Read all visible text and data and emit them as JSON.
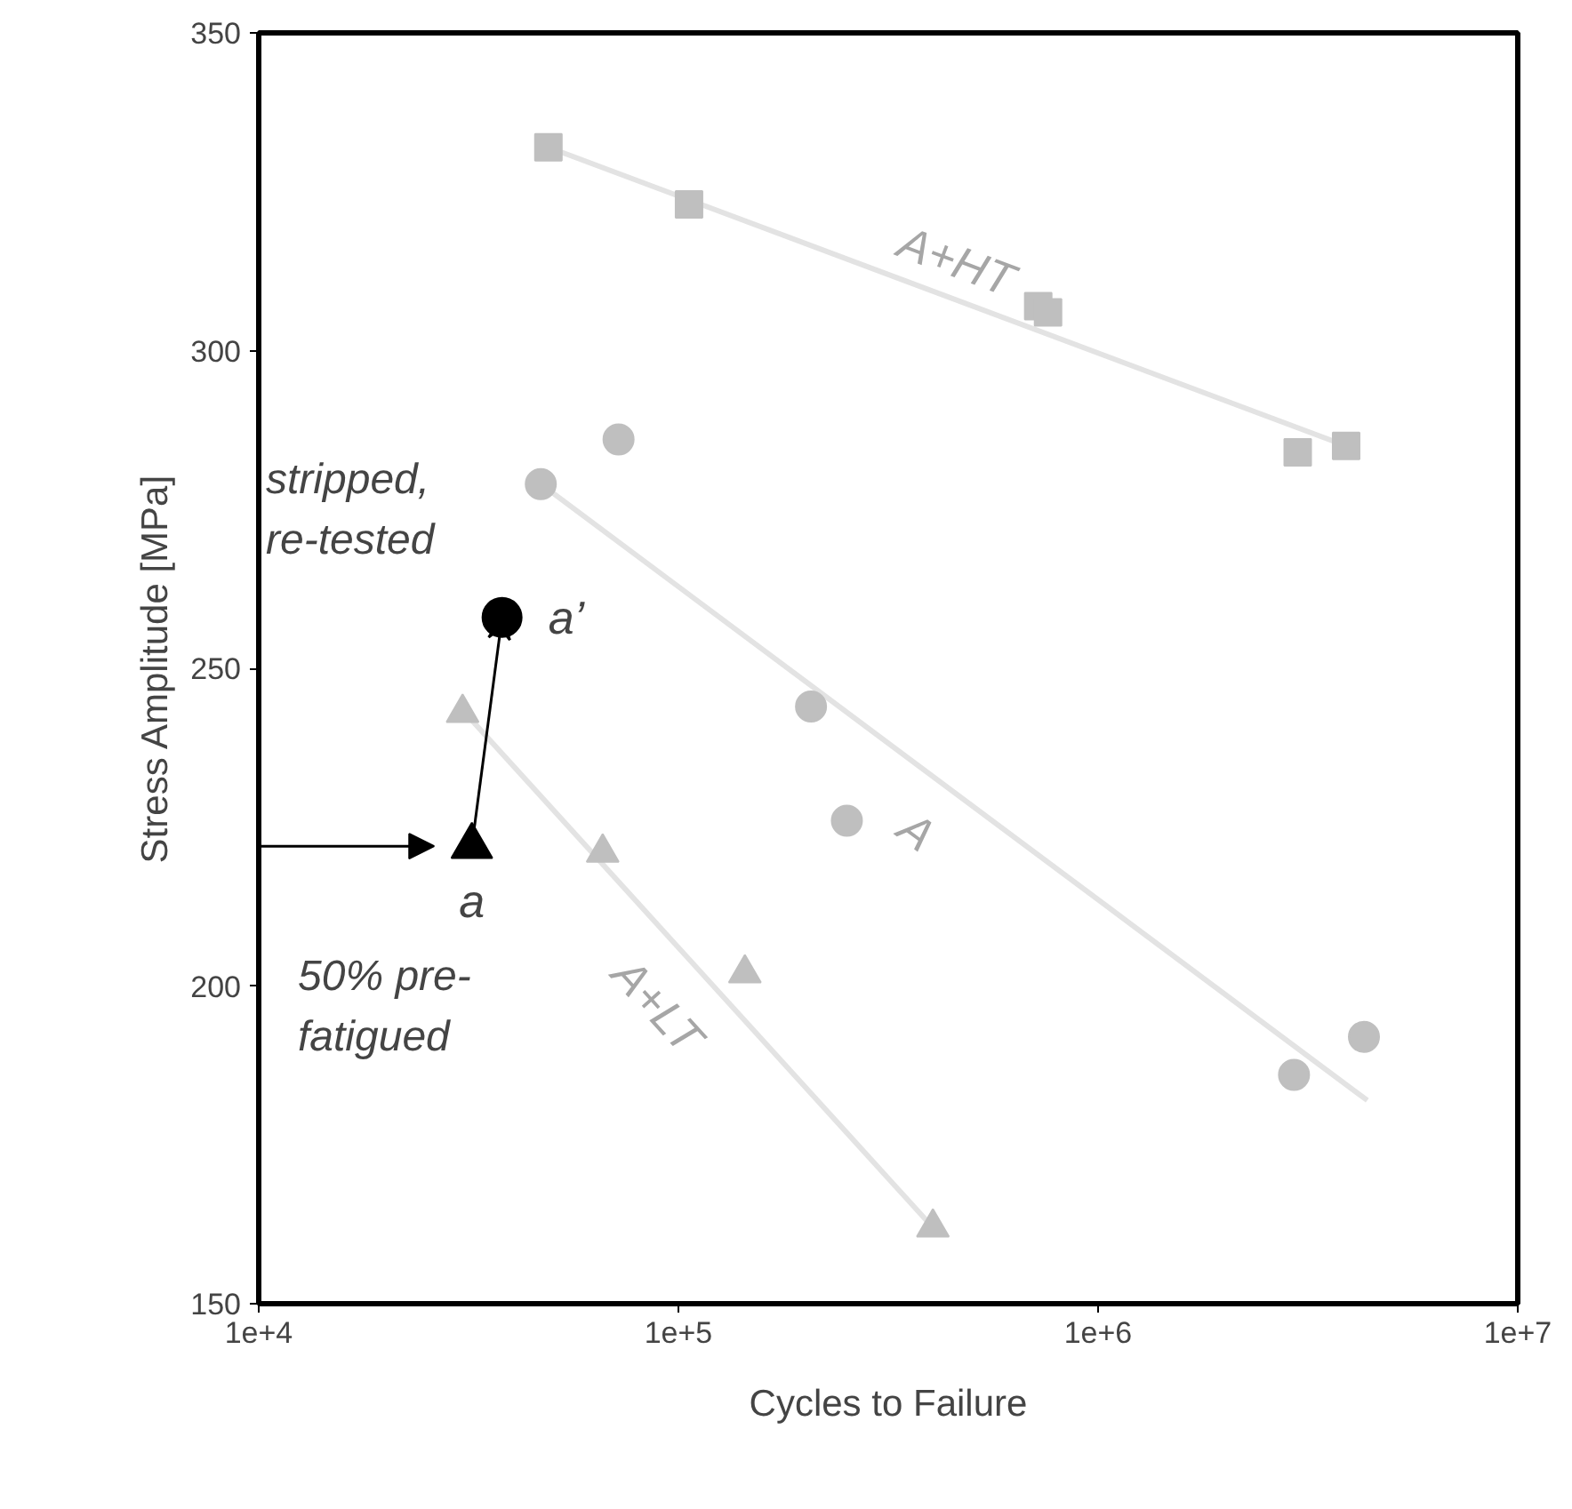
{
  "chart_data": {
    "type": "scatter",
    "xlabel": "Cycles to Failure",
    "ylabel": "Stress Amplitude [MPa]",
    "log": "x",
    "grid": false,
    "xlim": [
      10000,
      10000000
    ],
    "xticks": [
      {
        "value": 10000,
        "label": "1e+4"
      },
      {
        "value": 100000,
        "label": "1e+5"
      },
      {
        "value": 1000000,
        "label": "1e+6"
      },
      {
        "value": 10000000,
        "label": "1e+7"
      }
    ],
    "ylim": [
      150,
      350
    ],
    "yticks": [
      150,
      200,
      250,
      300,
      350
    ],
    "series": [
      {
        "type": "line",
        "name": "A+HT",
        "color": "#e3e3e3",
        "x": [
          49000,
          3900000
        ],
        "values": [
          332,
          285
        ],
        "marker": "none"
      },
      {
        "type": "line",
        "name": "A",
        "color": "#e3e3e3",
        "x": [
          47000,
          4380000
        ],
        "values": [
          279,
          182
        ],
        "marker": "none"
      },
      {
        "type": "line",
        "name": "A+LT",
        "color": "#e3e3e3",
        "x": [
          31000,
          404000
        ],
        "values": [
          243,
          162
        ],
        "marker": "none"
      },
      {
        "color": "#bfbfbf",
        "marker": "square",
        "x": [
          49000,
          106000,
          720000,
          760000,
          2990000,
          3900000
        ],
        "values": [
          332,
          323,
          307,
          306,
          284,
          285
        ]
      },
      {
        "color": "#bfbfbf",
        "marker": "circle",
        "x": [
          47000,
          72000,
          207000,
          252000,
          2930000,
          4300000
        ],
        "values": [
          279,
          286,
          244,
          226,
          186,
          192
        ]
      },
      {
        "color": "#bfbfbf",
        "marker": "triangle",
        "x": [
          30600,
          66000,
          144000,
          404000
        ],
        "values": [
          243,
          221,
          202,
          162
        ]
      },
      {
        "color": "#000000",
        "marker": "triangle",
        "x": [
          32200
        ],
        "values": [
          222
        ]
      },
      {
        "color": "#000000",
        "marker": "circle",
        "x": [
          38000
        ],
        "values": [
          258
        ]
      }
    ],
    "annotations": [
      {
        "text": "a",
        "x": 32200,
        "y": 222
      },
      {
        "text": "a’",
        "x": 38000,
        "y": 258
      },
      "stripped,\nre-tested",
      "50% pre-\nfatigued"
    ]
  }
}
